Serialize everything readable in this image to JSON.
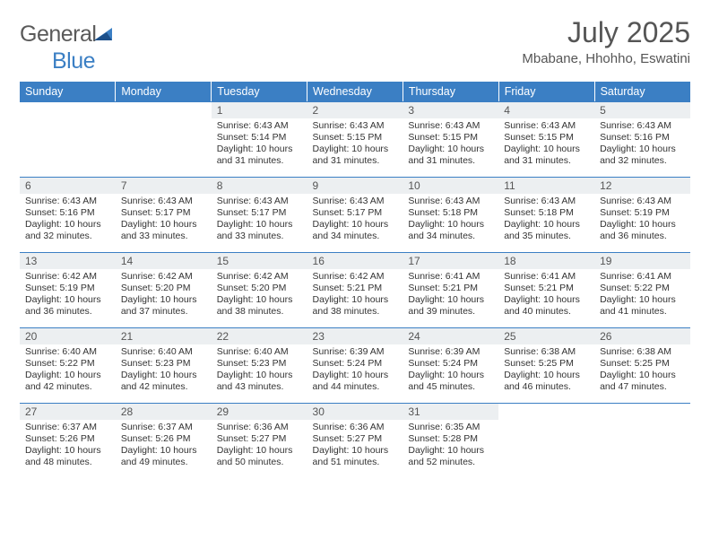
{
  "brand": {
    "name_part1": "General",
    "name_part2": "Blue"
  },
  "title": "July 2025",
  "location": "Mbabane, Hhohho, Eswatini",
  "colors": {
    "header_bg": "#3b7fc4",
    "header_text": "#ffffff",
    "daynum_bg": "#eceff1",
    "body_text": "#333333",
    "title_text": "#555555"
  },
  "day_headers": [
    "Sunday",
    "Monday",
    "Tuesday",
    "Wednesday",
    "Thursday",
    "Friday",
    "Saturday"
  ],
  "weeks": [
    [
      null,
      null,
      {
        "n": "1",
        "sr": "6:43 AM",
        "ss": "5:14 PM",
        "dl": "10 hours and 31 minutes."
      },
      {
        "n": "2",
        "sr": "6:43 AM",
        "ss": "5:15 PM",
        "dl": "10 hours and 31 minutes."
      },
      {
        "n": "3",
        "sr": "6:43 AM",
        "ss": "5:15 PM",
        "dl": "10 hours and 31 minutes."
      },
      {
        "n": "4",
        "sr": "6:43 AM",
        "ss": "5:15 PM",
        "dl": "10 hours and 31 minutes."
      },
      {
        "n": "5",
        "sr": "6:43 AM",
        "ss": "5:16 PM",
        "dl": "10 hours and 32 minutes."
      }
    ],
    [
      {
        "n": "6",
        "sr": "6:43 AM",
        "ss": "5:16 PM",
        "dl": "10 hours and 32 minutes."
      },
      {
        "n": "7",
        "sr": "6:43 AM",
        "ss": "5:17 PM",
        "dl": "10 hours and 33 minutes."
      },
      {
        "n": "8",
        "sr": "6:43 AM",
        "ss": "5:17 PM",
        "dl": "10 hours and 33 minutes."
      },
      {
        "n": "9",
        "sr": "6:43 AM",
        "ss": "5:17 PM",
        "dl": "10 hours and 34 minutes."
      },
      {
        "n": "10",
        "sr": "6:43 AM",
        "ss": "5:18 PM",
        "dl": "10 hours and 34 minutes."
      },
      {
        "n": "11",
        "sr": "6:43 AM",
        "ss": "5:18 PM",
        "dl": "10 hours and 35 minutes."
      },
      {
        "n": "12",
        "sr": "6:43 AM",
        "ss": "5:19 PM",
        "dl": "10 hours and 36 minutes."
      }
    ],
    [
      {
        "n": "13",
        "sr": "6:42 AM",
        "ss": "5:19 PM",
        "dl": "10 hours and 36 minutes."
      },
      {
        "n": "14",
        "sr": "6:42 AM",
        "ss": "5:20 PM",
        "dl": "10 hours and 37 minutes."
      },
      {
        "n": "15",
        "sr": "6:42 AM",
        "ss": "5:20 PM",
        "dl": "10 hours and 38 minutes."
      },
      {
        "n": "16",
        "sr": "6:42 AM",
        "ss": "5:21 PM",
        "dl": "10 hours and 38 minutes."
      },
      {
        "n": "17",
        "sr": "6:41 AM",
        "ss": "5:21 PM",
        "dl": "10 hours and 39 minutes."
      },
      {
        "n": "18",
        "sr": "6:41 AM",
        "ss": "5:21 PM",
        "dl": "10 hours and 40 minutes."
      },
      {
        "n": "19",
        "sr": "6:41 AM",
        "ss": "5:22 PM",
        "dl": "10 hours and 41 minutes."
      }
    ],
    [
      {
        "n": "20",
        "sr": "6:40 AM",
        "ss": "5:22 PM",
        "dl": "10 hours and 42 minutes."
      },
      {
        "n": "21",
        "sr": "6:40 AM",
        "ss": "5:23 PM",
        "dl": "10 hours and 42 minutes."
      },
      {
        "n": "22",
        "sr": "6:40 AM",
        "ss": "5:23 PM",
        "dl": "10 hours and 43 minutes."
      },
      {
        "n": "23",
        "sr": "6:39 AM",
        "ss": "5:24 PM",
        "dl": "10 hours and 44 minutes."
      },
      {
        "n": "24",
        "sr": "6:39 AM",
        "ss": "5:24 PM",
        "dl": "10 hours and 45 minutes."
      },
      {
        "n": "25",
        "sr": "6:38 AM",
        "ss": "5:25 PM",
        "dl": "10 hours and 46 minutes."
      },
      {
        "n": "26",
        "sr": "6:38 AM",
        "ss": "5:25 PM",
        "dl": "10 hours and 47 minutes."
      }
    ],
    [
      {
        "n": "27",
        "sr": "6:37 AM",
        "ss": "5:26 PM",
        "dl": "10 hours and 48 minutes."
      },
      {
        "n": "28",
        "sr": "6:37 AM",
        "ss": "5:26 PM",
        "dl": "10 hours and 49 minutes."
      },
      {
        "n": "29",
        "sr": "6:36 AM",
        "ss": "5:27 PM",
        "dl": "10 hours and 50 minutes."
      },
      {
        "n": "30",
        "sr": "6:36 AM",
        "ss": "5:27 PM",
        "dl": "10 hours and 51 minutes."
      },
      {
        "n": "31",
        "sr": "6:35 AM",
        "ss": "5:28 PM",
        "dl": "10 hours and 52 minutes."
      },
      null,
      null
    ]
  ],
  "labels": {
    "sunrise": "Sunrise:",
    "sunset": "Sunset:",
    "daylight": "Daylight:"
  }
}
